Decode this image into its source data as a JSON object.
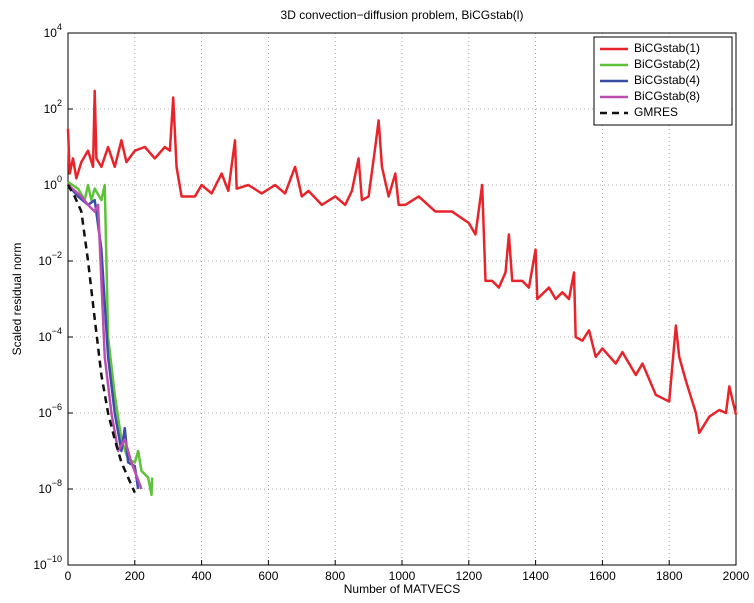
{
  "chart_data": {
    "type": "line",
    "title": "3D convection−diffusion problem, BiCGstab(l)",
    "x_label": "Number of MATVECS",
    "y_label": "Scaled residual norm",
    "xlim": [
      0,
      2000
    ],
    "xticks": [
      0,
      200,
      400,
      600,
      800,
      1000,
      1200,
      1400,
      1600,
      1800,
      2000
    ],
    "ylim": [
      1e-10,
      10000
    ],
    "log_y": true,
    "grid": true,
    "legend": "top-right",
    "yticks": [
      {
        "value": 1e-10,
        "label": "10^−10"
      },
      {
        "value": 1e-08,
        "label": "10^−8"
      },
      {
        "value": 1e-06,
        "label": "10^−6"
      },
      {
        "value": 0.0001,
        "label": "10^−4"
      },
      {
        "value": 0.01,
        "label": "10^−2"
      },
      {
        "value": 1,
        "label": "10^0"
      },
      {
        "value": 100,
        "label": "10^2"
      },
      {
        "value": 10000,
        "label": "10^4"
      }
    ],
    "series": [
      {
        "name": "BiCGstab(1)",
        "color": "#e8242b",
        "linestyle": "solid",
        "x": [
          0,
          5,
          15,
          25,
          40,
          60,
          75,
          80,
          85,
          100,
          120,
          140,
          160,
          175,
          200,
          230,
          260,
          290,
          305,
          315,
          325,
          340,
          380,
          400,
          430,
          460,
          480,
          500,
          505,
          540,
          580,
          620,
          650,
          680,
          700,
          720,
          760,
          800,
          830,
          850,
          870,
          880,
          900,
          920,
          930,
          940,
          960,
          980,
          990,
          1010,
          1050,
          1100,
          1150,
          1200,
          1220,
          1240,
          1250,
          1270,
          1290,
          1310,
          1320,
          1330,
          1360,
          1380,
          1400,
          1405,
          1440,
          1460,
          1480,
          1500,
          1515,
          1520,
          1540,
          1560,
          1580,
          1600,
          1640,
          1660,
          1700,
          1720,
          1760,
          1800,
          1820,
          1830,
          1850,
          1880,
          1890,
          1920,
          1950,
          1970,
          1980,
          2000
        ],
        "values": [
          30,
          2,
          5,
          1.5,
          4,
          8,
          3,
          300,
          5,
          3,
          10,
          3,
          15,
          4,
          8,
          10,
          5,
          10,
          8,
          200,
          3,
          0.5,
          0.5,
          1,
          0.6,
          2,
          0.7,
          15,
          0.8,
          1,
          0.6,
          1,
          0.6,
          3,
          0.5,
          0.7,
          0.3,
          0.5,
          0.3,
          0.7,
          5,
          0.4,
          0.5,
          10,
          50,
          3,
          0.5,
          2,
          0.3,
          0.3,
          0.5,
          0.2,
          0.2,
          0.1,
          0.05,
          1,
          0.003,
          0.003,
          0.002,
          0.005,
          0.05,
          0.003,
          0.003,
          0.002,
          0.02,
          0.001,
          0.002,
          0.001,
          0.0015,
          0.001,
          0.005,
          0.0001,
          8e-05,
          0.00015,
          3e-05,
          5e-05,
          2e-05,
          4e-05,
          1e-05,
          2e-05,
          3e-06,
          2e-06,
          0.0002,
          3e-05,
          7e-06,
          1e-06,
          3e-07,
          8e-07,
          1.2e-06,
          1e-06,
          5e-06,
          9e-07
        ]
      },
      {
        "name": "BiCGstab(2)",
        "color": "#5ec23a",
        "linestyle": "solid",
        "x": [
          0,
          30,
          50,
          60,
          70,
          80,
          100,
          110,
          120,
          140,
          160,
          180,
          200,
          210,
          220,
          240,
          250,
          252
        ],
        "values": [
          1.2,
          0.8,
          0.4,
          1,
          0.4,
          0.8,
          0.4,
          1,
          0.0001,
          3e-06,
          2e-07,
          6e-08,
          5e-08,
          1e-07,
          3e-08,
          2e-08,
          7e-09,
          2e-08
        ]
      },
      {
        "name": "BiCGstab(4)",
        "color": "#3b4ea6",
        "linestyle": "solid",
        "x": [
          0,
          30,
          60,
          80,
          100,
          120,
          140,
          160,
          170,
          180,
          200,
          210
        ],
        "values": [
          1,
          0.5,
          0.3,
          0.4,
          0.02,
          3e-05,
          1e-06,
          1e-07,
          4e-07,
          5e-08,
          4e-08,
          1e-08
        ]
      },
      {
        "name": "BiCGstab(8)",
        "color": "#b94fb0",
        "linestyle": "solid",
        "x": [
          0,
          40,
          60,
          80,
          90,
          110,
          130,
          150,
          170,
          190,
          220
        ],
        "values": [
          1,
          0.5,
          0.3,
          0.2,
          0.3,
          3e-05,
          1e-06,
          1e-07,
          2e-07,
          5e-08,
          1e-08
        ]
      },
      {
        "name": "GMRES",
        "color": "#111111",
        "linestyle": "dashed",
        "x": [
          0,
          20,
          40,
          60,
          80,
          100,
          120,
          140,
          160,
          180,
          200
        ],
        "values": [
          1,
          0.5,
          0.2,
          0.01,
          0.0003,
          1e-05,
          1e-06,
          2e-07,
          5e-08,
          2e-08,
          8e-09
        ]
      }
    ]
  }
}
